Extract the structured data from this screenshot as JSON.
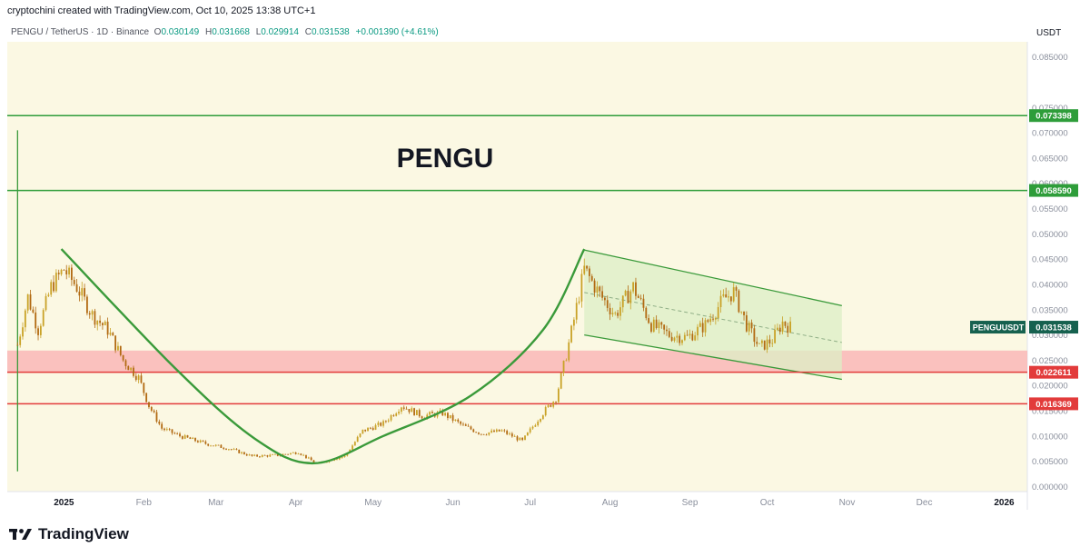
{
  "header": {
    "attribution": "cryptochini created with TradingView.com, Oct 10, 2025 13:38 UTC+1"
  },
  "ohlc": {
    "symbol_desc": "PENGU / TetherUS · 1D · Binance",
    "o_label": "O",
    "o_value": "0.030149",
    "h_label": "H",
    "h_value": "0.031668",
    "l_label": "L",
    "l_value": "0.029914",
    "c_label": "C",
    "c_value": "0.031538",
    "change": "+0.001390 (+4.61%)"
  },
  "branding": {
    "logo_text": "TradingView",
    "logo_icon": "tradingview-logo-icon"
  },
  "colors": {
    "plot_bg": "#fbf8e3",
    "bull": "#c9a227",
    "bear": "#b26a12",
    "level_green": "#2e9d3a",
    "level_red": "#e23b3b",
    "zone_red": "#f9b7b7",
    "channel_fill": "#dcefc6",
    "curve": "#3a9a3a",
    "symbol_tag": "#16614f"
  },
  "chart_data": {
    "type": "candlestick",
    "title": "PENGU",
    "quote_currency": "USDT",
    "x_axis": {
      "ticks": [
        "2025",
        "Feb",
        "Mar",
        "Apr",
        "May",
        "Jun",
        "Jul",
        "Aug",
        "Sep",
        "Oct",
        "Nov",
        "Dec",
        "2026"
      ],
      "range": [
        "2024-12-10",
        "2026-01-10"
      ]
    },
    "y_axis": {
      "range": [
        -0.001,
        0.088
      ],
      "ticks": [
        "0.085000",
        "0.075000",
        "0.070000",
        "0.065000",
        "0.060000",
        "0.055000",
        "0.050000",
        "0.045000",
        "0.040000",
        "0.035000",
        "0.030000",
        "0.025000",
        "0.020000",
        "0.015000",
        "0.010000",
        "0.005000",
        "0.000000"
      ]
    },
    "price_levels": [
      {
        "value": 0.073398,
        "label": "0.073398",
        "color": "#2e9d3a"
      },
      {
        "value": 0.05859,
        "label": "0.058590",
        "color": "#2e9d3a"
      },
      {
        "value": 0.022611,
        "label": "0.022611",
        "color": "#e23b3b"
      },
      {
        "value": 0.016369,
        "label": "0.016369",
        "color": "#e23b3b"
      }
    ],
    "current_price": {
      "symbol": "PENGUUSDT",
      "value": 0.031538,
      "label": "0.031538"
    },
    "support_zone": [
      0.022611,
      0.0269
    ],
    "cup_curve": [
      {
        "date": "2024-12-31",
        "price": 0.047
      },
      {
        "date": "2025-02-13",
        "price": 0.0235
      },
      {
        "date": "2025-03-16",
        "price": 0.0095
      },
      {
        "date": "2025-04-08",
        "price": 0.0046
      },
      {
        "date": "2025-05-05",
        "price": 0.01
      },
      {
        "date": "2025-06-08",
        "price": 0.018
      },
      {
        "date": "2025-07-06",
        "price": 0.031
      },
      {
        "date": "2025-07-22",
        "price": 0.047
      }
    ],
    "vertical_marker": {
      "date": "2024-12-14",
      "top": 0.0705,
      "bottom": 0.003
    },
    "channel": {
      "upper": [
        {
          "date": "2025-07-22",
          "price": 0.0468
        },
        {
          "date": "2025-10-30",
          "price": 0.0358
        }
      ],
      "lower": [
        {
          "date": "2025-07-22",
          "price": 0.03
        },
        {
          "date": "2025-10-30",
          "price": 0.0212
        }
      ],
      "mid": [
        {
          "date": "2025-07-22",
          "price": 0.0384
        },
        {
          "date": "2025-10-30",
          "price": 0.0285
        }
      ]
    },
    "price_path": [
      {
        "date": "2024-12-14",
        "price": 0.028
      },
      {
        "date": "2024-12-18",
        "price": 0.0375
      },
      {
        "date": "2024-12-22",
        "price": 0.031
      },
      {
        "date": "2024-12-27",
        "price": 0.0395
      },
      {
        "date": "2025-01-01",
        "price": 0.043
      },
      {
        "date": "2025-01-06",
        "price": 0.0395
      },
      {
        "date": "2025-01-12",
        "price": 0.034
      },
      {
        "date": "2025-01-18",
        "price": 0.031
      },
      {
        "date": "2025-01-24",
        "price": 0.025
      },
      {
        "date": "2025-01-30",
        "price": 0.0215
      },
      {
        "date": "2025-02-03",
        "price": 0.016
      },
      {
        "date": "2025-02-08",
        "price": 0.0115
      },
      {
        "date": "2025-02-15",
        "price": 0.01
      },
      {
        "date": "2025-02-25",
        "price": 0.0085
      },
      {
        "date": "2025-03-06",
        "price": 0.0075
      },
      {
        "date": "2025-03-15",
        "price": 0.006
      },
      {
        "date": "2025-03-25",
        "price": 0.0062
      },
      {
        "date": "2025-04-02",
        "price": 0.0068
      },
      {
        "date": "2025-04-09",
        "price": 0.0045
      },
      {
        "date": "2025-04-20",
        "price": 0.006
      },
      {
        "date": "2025-04-27",
        "price": 0.011
      },
      {
        "date": "2025-05-05",
        "price": 0.0125
      },
      {
        "date": "2025-05-12",
        "price": 0.016
      },
      {
        "date": "2025-05-20",
        "price": 0.014
      },
      {
        "date": "2025-05-28",
        "price": 0.0145
      },
      {
        "date": "2025-06-05",
        "price": 0.012
      },
      {
        "date": "2025-06-12",
        "price": 0.0105
      },
      {
        "date": "2025-06-20",
        "price": 0.011
      },
      {
        "date": "2025-06-28",
        "price": 0.009
      },
      {
        "date": "2025-07-05",
        "price": 0.014
      },
      {
        "date": "2025-07-11",
        "price": 0.0175
      },
      {
        "date": "2025-07-15",
        "price": 0.026
      },
      {
        "date": "2025-07-18",
        "price": 0.033
      },
      {
        "date": "2025-07-22",
        "price": 0.043
      },
      {
        "date": "2025-07-28",
        "price": 0.038
      },
      {
        "date": "2025-08-03",
        "price": 0.034
      },
      {
        "date": "2025-08-10",
        "price": 0.0395
      },
      {
        "date": "2025-08-17",
        "price": 0.032
      },
      {
        "date": "2025-08-24",
        "price": 0.03
      },
      {
        "date": "2025-08-31",
        "price": 0.0295
      },
      {
        "date": "2025-09-07",
        "price": 0.032
      },
      {
        "date": "2025-09-14",
        "price": 0.037
      },
      {
        "date": "2025-09-18",
        "price": 0.0385
      },
      {
        "date": "2025-09-23",
        "price": 0.032
      },
      {
        "date": "2025-09-28",
        "price": 0.0275
      },
      {
        "date": "2025-10-03",
        "price": 0.029
      },
      {
        "date": "2025-10-07",
        "price": 0.0325
      },
      {
        "date": "2025-10-10",
        "price": 0.0315
      }
    ]
  }
}
